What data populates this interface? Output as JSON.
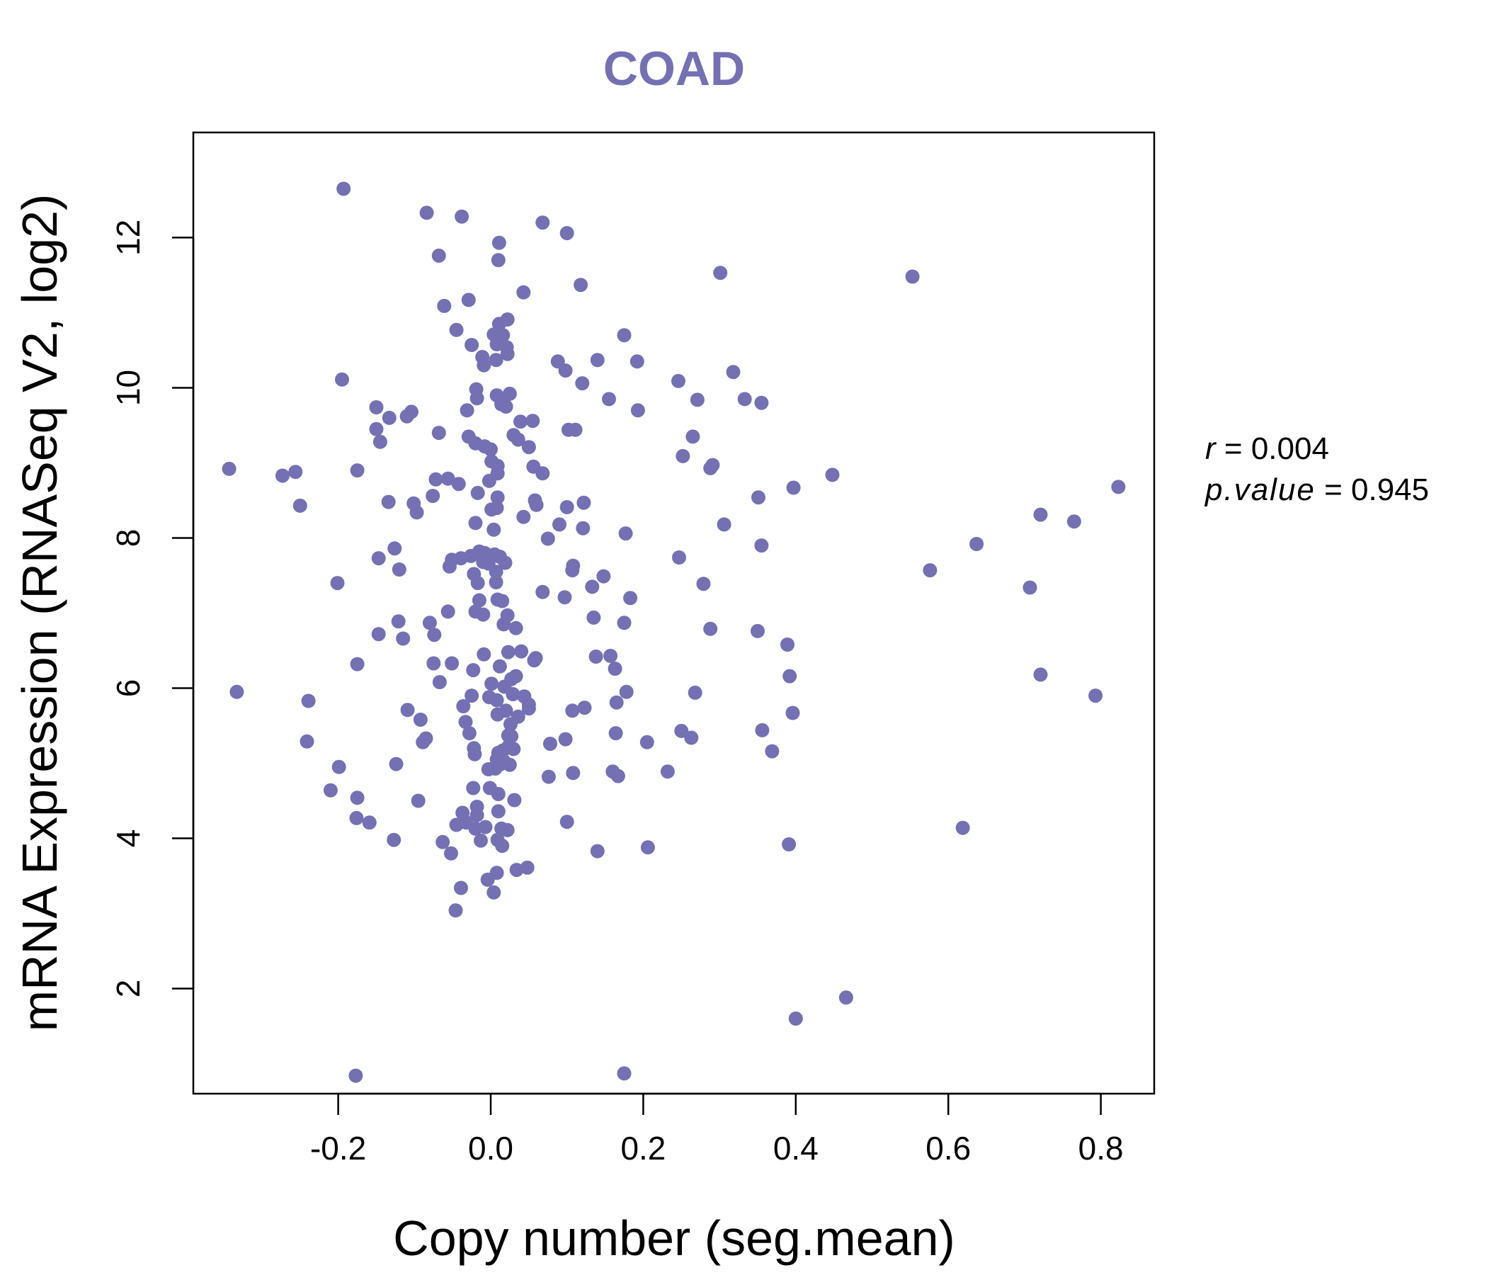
{
  "colors": {
    "point": "#7470B3",
    "title": "#7470B3",
    "axis": "#000000",
    "text": "#000000"
  },
  "chart_data": {
    "type": "scatter",
    "title": "COAD",
    "xlabel": "Copy number (seg.mean)",
    "ylabel": "mRNA Expression (RNASeq V2, log2)",
    "xlim": [
      -0.39,
      0.87
    ],
    "ylim": [
      0.6,
      13.4
    ],
    "xticks": [
      -0.2,
      0.0,
      0.2,
      0.4,
      0.6,
      0.8
    ],
    "xtick_labels": [
      "-0.2",
      "0.0",
      "0.2",
      "0.4",
      "0.6",
      "0.8"
    ],
    "yticks": [
      2,
      4,
      6,
      8,
      10,
      12
    ],
    "ytick_labels": [
      "2",
      "4",
      "6",
      "8",
      "10",
      "12"
    ],
    "annotation": {
      "r_label": "r",
      "r_value": "0.004",
      "p_label": "p.value",
      "p_value": "0.945"
    },
    "points": [
      [
        -0.193,
        12.65
      ],
      [
        -0.084,
        12.33
      ],
      [
        -0.038,
        12.28
      ],
      [
        0.068,
        12.2
      ],
      [
        0.1,
        12.06
      ],
      [
        0.011,
        11.93
      ],
      [
        -0.068,
        11.76
      ],
      [
        0.01,
        11.7
      ],
      [
        0.301,
        11.53
      ],
      [
        0.553,
        11.48
      ],
      [
        0.118,
        11.37
      ],
      [
        0.043,
        11.27
      ],
      [
        -0.029,
        11.17
      ],
      [
        -0.061,
        11.09
      ],
      [
        0.022,
        10.91
      ],
      [
        0.011,
        10.85
      ],
      [
        -0.045,
        10.77
      ],
      [
        0.004,
        10.71
      ],
      [
        0.016,
        10.7
      ],
      [
        0.175,
        10.7
      ],
      [
        0.008,
        10.58
      ],
      [
        0.021,
        10.54
      ],
      [
        -0.025,
        10.57
      ],
      [
        0.022,
        10.45
      ],
      [
        -0.011,
        10.41
      ],
      [
        0.007,
        10.37
      ],
      [
        -0.009,
        10.3
      ],
      [
        0.14,
        10.37
      ],
      [
        0.192,
        10.35
      ],
      [
        0.088,
        10.35
      ],
      [
        0.098,
        10.23
      ],
      [
        0.318,
        10.21
      ],
      [
        -0.195,
        10.11
      ],
      [
        0.246,
        10.09
      ],
      [
        0.12,
        10.06
      ],
      [
        -0.019,
        9.98
      ],
      [
        0.025,
        9.92
      ],
      [
        0.008,
        9.9
      ],
      [
        -0.018,
        9.86
      ],
      [
        0.155,
        9.85
      ],
      [
        0.271,
        9.84
      ],
      [
        0.333,
        9.85
      ],
      [
        0.355,
        9.8
      ],
      [
        -0.15,
        9.74
      ],
      [
        0.014,
        9.78
      ],
      [
        0.02,
        9.75
      ],
      [
        -0.031,
        9.7
      ],
      [
        0.193,
        9.7
      ],
      [
        -0.104,
        9.68
      ],
      [
        -0.11,
        9.62
      ],
      [
        -0.133,
        9.6
      ],
      [
        0.039,
        9.55
      ],
      [
        0.055,
        9.56
      ],
      [
        -0.15,
        9.45
      ],
      [
        0.102,
        9.44
      ],
      [
        0.111,
        9.44
      ],
      [
        -0.068,
        9.4
      ],
      [
        0.03,
        9.37
      ],
      [
        -0.029,
        9.35
      ],
      [
        0.036,
        9.31
      ],
      [
        0.265,
        9.35
      ],
      [
        -0.02,
        9.26
      ],
      [
        -0.145,
        9.28
      ],
      [
        -0.008,
        9.22
      ],
      [
        0.05,
        9.21
      ],
      [
        0.0,
        9.18
      ],
      [
        0.252,
        9.09
      ],
      [
        0.001,
        9.02
      ],
      [
        0.009,
        8.96
      ],
      [
        0.056,
        8.95
      ],
      [
        -0.343,
        8.92
      ],
      [
        -0.175,
        8.9
      ],
      [
        0.291,
        8.97
      ],
      [
        0.288,
        8.93
      ],
      [
        0.068,
        8.86
      ],
      [
        0.009,
        8.86
      ],
      [
        -0.256,
        8.88
      ],
      [
        -0.273,
        8.83
      ],
      [
        0.448,
        8.84
      ],
      [
        -0.056,
        8.79
      ],
      [
        -0.072,
        8.78
      ],
      [
        -0.002,
        8.76
      ],
      [
        -0.042,
        8.72
      ],
      [
        0.397,
        8.67
      ],
      [
        0.823,
        8.68
      ],
      [
        -0.017,
        8.6
      ],
      [
        -0.076,
        8.56
      ],
      [
        0.009,
        8.54
      ],
      [
        0.058,
        8.5
      ],
      [
        0.351,
        8.54
      ],
      [
        -0.134,
        8.48
      ],
      [
        -0.101,
        8.46
      ],
      [
        -0.25,
        8.43
      ],
      [
        0.122,
        8.47
      ],
      [
        0.06,
        8.44
      ],
      [
        0.1,
        8.41
      ],
      [
        0.008,
        8.4
      ],
      [
        0.001,
        8.38
      ],
      [
        -0.097,
        8.34
      ],
      [
        0.043,
        8.28
      ],
      [
        0.721,
        8.31
      ],
      [
        0.765,
        8.22
      ],
      [
        -0.02,
        8.2
      ],
      [
        0.09,
        8.18
      ],
      [
        0.306,
        8.18
      ],
      [
        0.121,
        8.13
      ],
      [
        0.004,
        8.11
      ],
      [
        0.177,
        8.06
      ],
      [
        0.075,
        7.99
      ],
      [
        0.355,
        7.9
      ],
      [
        0.637,
        7.92
      ],
      [
        -0.126,
        7.86
      ],
      [
        -0.015,
        7.82
      ],
      [
        -0.008,
        7.8
      ],
      [
        0.005,
        7.78
      ],
      [
        0.012,
        7.75
      ],
      [
        -0.026,
        7.76
      ],
      [
        -0.039,
        7.73
      ],
      [
        -0.147,
        7.73
      ],
      [
        0.247,
        7.74
      ],
      [
        -0.051,
        7.71
      ],
      [
        0.019,
        7.67
      ],
      [
        -0.01,
        7.68
      ],
      [
        -0.003,
        7.66
      ],
      [
        0.108,
        7.63
      ],
      [
        -0.054,
        7.62
      ],
      [
        -0.12,
        7.58
      ],
      [
        0.107,
        7.57
      ],
      [
        0.007,
        7.55
      ],
      [
        0.576,
        7.57
      ],
      [
        -0.022,
        7.52
      ],
      [
        0.148,
        7.49
      ],
      [
        -0.017,
        7.4
      ],
      [
        0.007,
        7.41
      ],
      [
        0.279,
        7.39
      ],
      [
        -0.201,
        7.4
      ],
      [
        0.133,
        7.35
      ],
      [
        0.707,
        7.34
      ],
      [
        0.068,
        7.28
      ],
      [
        0.097,
        7.21
      ],
      [
        0.183,
        7.2
      ],
      [
        0.009,
        7.18
      ],
      [
        0.015,
        7.16
      ],
      [
        -0.015,
        7.17
      ],
      [
        -0.056,
        7.02
      ],
      [
        -0.02,
        7.02
      ],
      [
        -0.01,
        6.98
      ],
      [
        0.022,
        6.97
      ],
      [
        0.135,
        6.94
      ],
      [
        -0.121,
        6.89
      ],
      [
        -0.08,
        6.87
      ],
      [
        0.175,
        6.87
      ],
      [
        0.017,
        6.85
      ],
      [
        0.033,
        6.8
      ],
      [
        0.288,
        6.79
      ],
      [
        0.35,
        6.76
      ],
      [
        -0.147,
        6.72
      ],
      [
        -0.074,
        6.71
      ],
      [
        -0.115,
        6.66
      ],
      [
        0.389,
        6.58
      ],
      [
        0.023,
        6.48
      ],
      [
        0.04,
        6.49
      ],
      [
        -0.009,
        6.45
      ],
      [
        0.138,
        6.42
      ],
      [
        0.157,
        6.43
      ],
      [
        0.059,
        6.4
      ],
      [
        0.057,
        6.37
      ],
      [
        -0.051,
        6.33
      ],
      [
        -0.075,
        6.33
      ],
      [
        -0.175,
        6.32
      ],
      [
        0.012,
        6.29
      ],
      [
        0.163,
        6.26
      ],
      [
        -0.023,
        6.24
      ],
      [
        0.721,
        6.18
      ],
      [
        0.392,
        6.16
      ],
      [
        0.033,
        6.16
      ],
      [
        0.027,
        6.12
      ],
      [
        -0.067,
        6.08
      ],
      [
        0.001,
        6.06
      ],
      [
        0.018,
        6.02
      ],
      [
        -0.333,
        5.95
      ],
      [
        0.178,
        5.95
      ],
      [
        0.268,
        5.94
      ],
      [
        0.793,
        5.9
      ],
      [
        0.029,
        5.92
      ],
      [
        -0.025,
        5.9
      ],
      [
        -0.002,
        5.88
      ],
      [
        0.044,
        5.89
      ],
      [
        0.008,
        5.84
      ],
      [
        -0.239,
        5.83
      ],
      [
        0.165,
        5.81
      ],
      [
        0.05,
        5.78
      ],
      [
        -0.036,
        5.76
      ],
      [
        0.05,
        5.73
      ],
      [
        0.123,
        5.74
      ],
      [
        0.107,
        5.7
      ],
      [
        -0.109,
        5.71
      ],
      [
        0.02,
        5.7
      ],
      [
        0.396,
        5.67
      ],
      [
        0.009,
        5.65
      ],
      [
        0.036,
        5.62
      ],
      [
        -0.092,
        5.58
      ],
      [
        -0.033,
        5.55
      ],
      [
        0.026,
        5.52
      ],
      [
        0.25,
        5.43
      ],
      [
        0.356,
        5.44
      ],
      [
        -0.028,
        5.4
      ],
      [
        0.164,
        5.4
      ],
      [
        0.023,
        5.37
      ],
      [
        0.027,
        5.36
      ],
      [
        0.263,
        5.34
      ],
      [
        0.098,
        5.32
      ],
      [
        -0.085,
        5.33
      ],
      [
        -0.089,
        5.28
      ],
      [
        -0.241,
        5.29
      ],
      [
        0.205,
        5.28
      ],
      [
        0.078,
        5.26
      ],
      [
        0.023,
        5.22
      ],
      [
        -0.022,
        5.2
      ],
      [
        0.03,
        5.19
      ],
      [
        0.016,
        5.17
      ],
      [
        0.369,
        5.16
      ],
      [
        0.01,
        5.14
      ],
      [
        -0.021,
        5.12
      ],
      [
        0.008,
        5.05
      ],
      [
        0.017,
        5.03
      ],
      [
        -0.124,
        4.99
      ],
      [
        0.013,
        4.99
      ],
      [
        0.025,
        4.98
      ],
      [
        -0.199,
        4.95
      ],
      [
        0.006,
        4.93
      ],
      [
        -0.003,
        4.92
      ],
      [
        0.16,
        4.89
      ],
      [
        0.108,
        4.87
      ],
      [
        0.232,
        4.89
      ],
      [
        0.167,
        4.83
      ],
      [
        0.076,
        4.82
      ],
      [
        -0.023,
        4.67
      ],
      [
        -0.001,
        4.67
      ],
      [
        -0.21,
        4.64
      ],
      [
        0.01,
        4.59
      ],
      [
        -0.175,
        4.54
      ],
      [
        -0.095,
        4.5
      ],
      [
        0.031,
        4.51
      ],
      [
        -0.018,
        4.42
      ],
      [
        -0.037,
        4.34
      ],
      [
        0.01,
        4.36
      ],
      [
        -0.018,
        4.31
      ],
      [
        -0.176,
        4.27
      ],
      [
        -0.159,
        4.21
      ],
      [
        0.1,
        4.22
      ],
      [
        -0.032,
        4.21
      ],
      [
        -0.045,
        4.18
      ],
      [
        -0.007,
        4.15
      ],
      [
        -0.02,
        4.13
      ],
      [
        0.014,
        4.13
      ],
      [
        0.022,
        4.11
      ],
      [
        0.619,
        4.14
      ],
      [
        -0.013,
        3.97
      ],
      [
        -0.127,
        3.98
      ],
      [
        0.009,
        3.98
      ],
      [
        0.015,
        3.9
      ],
      [
        -0.063,
        3.95
      ],
      [
        0.391,
        3.92
      ],
      [
        0.206,
        3.88
      ],
      [
        -0.052,
        3.8
      ],
      [
        0.14,
        3.83
      ],
      [
        0.048,
        3.61
      ],
      [
        0.034,
        3.58
      ],
      [
        0.008,
        3.54
      ],
      [
        -0.004,
        3.45
      ],
      [
        -0.039,
        3.34
      ],
      [
        0.004,
        3.28
      ],
      [
        -0.046,
        3.04
      ],
      [
        0.466,
        1.88
      ],
      [
        0.4,
        1.6
      ],
      [
        0.175,
        0.87
      ],
      [
        -0.177,
        0.84
      ]
    ]
  }
}
